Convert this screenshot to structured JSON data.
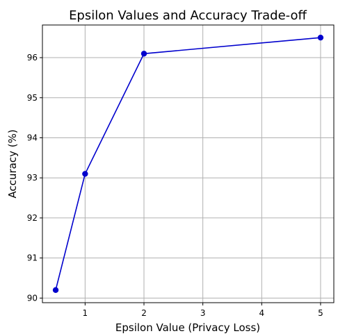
{
  "chart_data": {
    "type": "line",
    "title": "Epsilon Values and Accuracy Trade-off",
    "xlabel": "Epsilon Value (Privacy Loss)",
    "ylabel": "Accuracy (%)",
    "x": [
      0.5,
      1,
      2,
      5
    ],
    "series": [
      {
        "values": [
          90.2,
          93.1,
          96.1,
          96.5
        ],
        "color": "#0000cd",
        "marker": "circle"
      }
    ],
    "xticks": [
      1,
      2,
      3,
      4,
      5
    ],
    "yticks": [
      90,
      91,
      92,
      93,
      94,
      95,
      96
    ],
    "xlim": [
      0.275,
      5.225
    ],
    "ylim": [
      89.885,
      96.815
    ],
    "grid": true,
    "legend": "none"
  }
}
